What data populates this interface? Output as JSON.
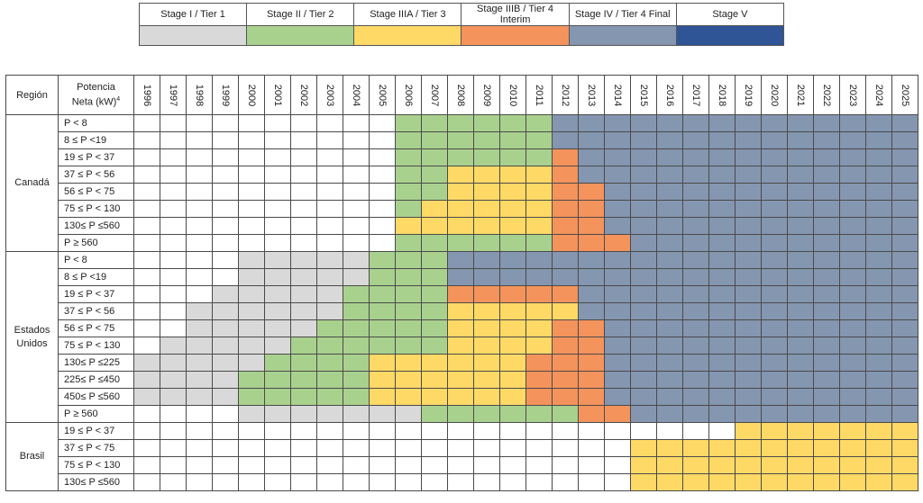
{
  "legend": [
    {
      "label": "Stage I / Tier 1",
      "color": "#d9d9d9"
    },
    {
      "label": "Stage II / Tier 2",
      "color": "#a9d18e"
    },
    {
      "label": "Stage IIIA / Tier 3",
      "color": "#ffd966"
    },
    {
      "label": "Stage IIIB / Tier 4 Interim",
      "color": "#f4935b"
    },
    {
      "label": "Stage IV / Tier 4 Final",
      "color": "#8496b0"
    },
    {
      "label": "Stage V",
      "color": "#2f5597"
    }
  ],
  "header": {
    "region": "Región",
    "power_line1": "Potencia",
    "power_line2": "Neta (kW)",
    "power_sup": "4"
  },
  "chart_data": {
    "type": "table",
    "years": [
      "1996",
      "1997",
      "1998",
      "1999",
      "2000",
      "2001",
      "2002",
      "2003",
      "2004",
      "2005",
      "2006",
      "2007",
      "2008",
      "2009",
      "2010",
      "2011",
      "2012",
      "2013",
      "2014",
      "2015",
      "2016",
      "2017",
      "2018",
      "2019",
      "2020",
      "2021",
      "2022",
      "2023",
      "2024",
      "2025"
    ],
    "stage_codes": {
      "0": "none",
      "1": "Stage I / Tier 1",
      "2": "Stage II / Tier 2",
      "3": "Stage IIIA / Tier 3",
      "4": "Stage IIIB / Tier 4 Interim",
      "5": "Stage IV / Tier 4 Final",
      "6": "Stage V"
    },
    "regions": [
      {
        "name_lines": [
          "Canadá"
        ],
        "rows": [
          {
            "power": "P < 8",
            "stages": "000000000022222255555555555555"
          },
          {
            "power": "8 ≤ P <19",
            "stages": "000000000022222255555555555555"
          },
          {
            "power": "19 ≤ P < 37",
            "stages": "000000000022222245555555555555"
          },
          {
            "power": "37 ≤ P < 56",
            "stages": "000000000022333345555555555555"
          },
          {
            "power": "56 ≤ P < 75",
            "stages": "000000000022333344555555555555"
          },
          {
            "power": "75 ≤ P < 130",
            "stages": "000000000023333344555555555555"
          },
          {
            "power": "130≤ P ≤560",
            "stages": "000000000033333344555555555555"
          },
          {
            "power": "P ≥ 560",
            "stages": "000000000022222244455555555555"
          }
        ]
      },
      {
        "name_lines": [
          "Estados",
          "Unidos"
        ],
        "rows": [
          {
            "power": "P < 8",
            "stages": "000011111222555555555555555555"
          },
          {
            "power": "8 ≤ P <19",
            "stages": "000011111222555555555555555555"
          },
          {
            "power": "19 ≤ P < 37",
            "stages": "000111112222444445555555555555"
          },
          {
            "power": "37 ≤ P < 56",
            "stages": "001111112222333335555555555555"
          },
          {
            "power": "56 ≤ P < 75",
            "stages": "001111122222333344555555555555"
          },
          {
            "power": "75 ≤ P < 130",
            "stages": "011111222222333344555555555555"
          },
          {
            "power": "130≤ P ≤225",
            "stages": "111112222333333444555555555555"
          },
          {
            "power": "225≤ P ≤450",
            "stages": "111122222333333444555555555555"
          },
          {
            "power": "450≤ P ≤560",
            "stages": "111122222333333444555555555555"
          },
          {
            "power": "P ≥ 560",
            "stages": "000011111112222224455555555555"
          }
        ]
      },
      {
        "name_lines": [
          "Brasil"
        ],
        "rows": [
          {
            "power": "19 ≤ P < 37",
            "stages": "000000000000000000000003333333"
          },
          {
            "power": "37 ≤ P < 75",
            "stages": "000000000000000000033333333333"
          },
          {
            "power": "75 ≤ P < 130",
            "stages": "000000000000000000033333333333"
          },
          {
            "power": "130≤ P ≤560",
            "stages": "000000000000000000033333333333"
          }
        ]
      }
    ]
  }
}
